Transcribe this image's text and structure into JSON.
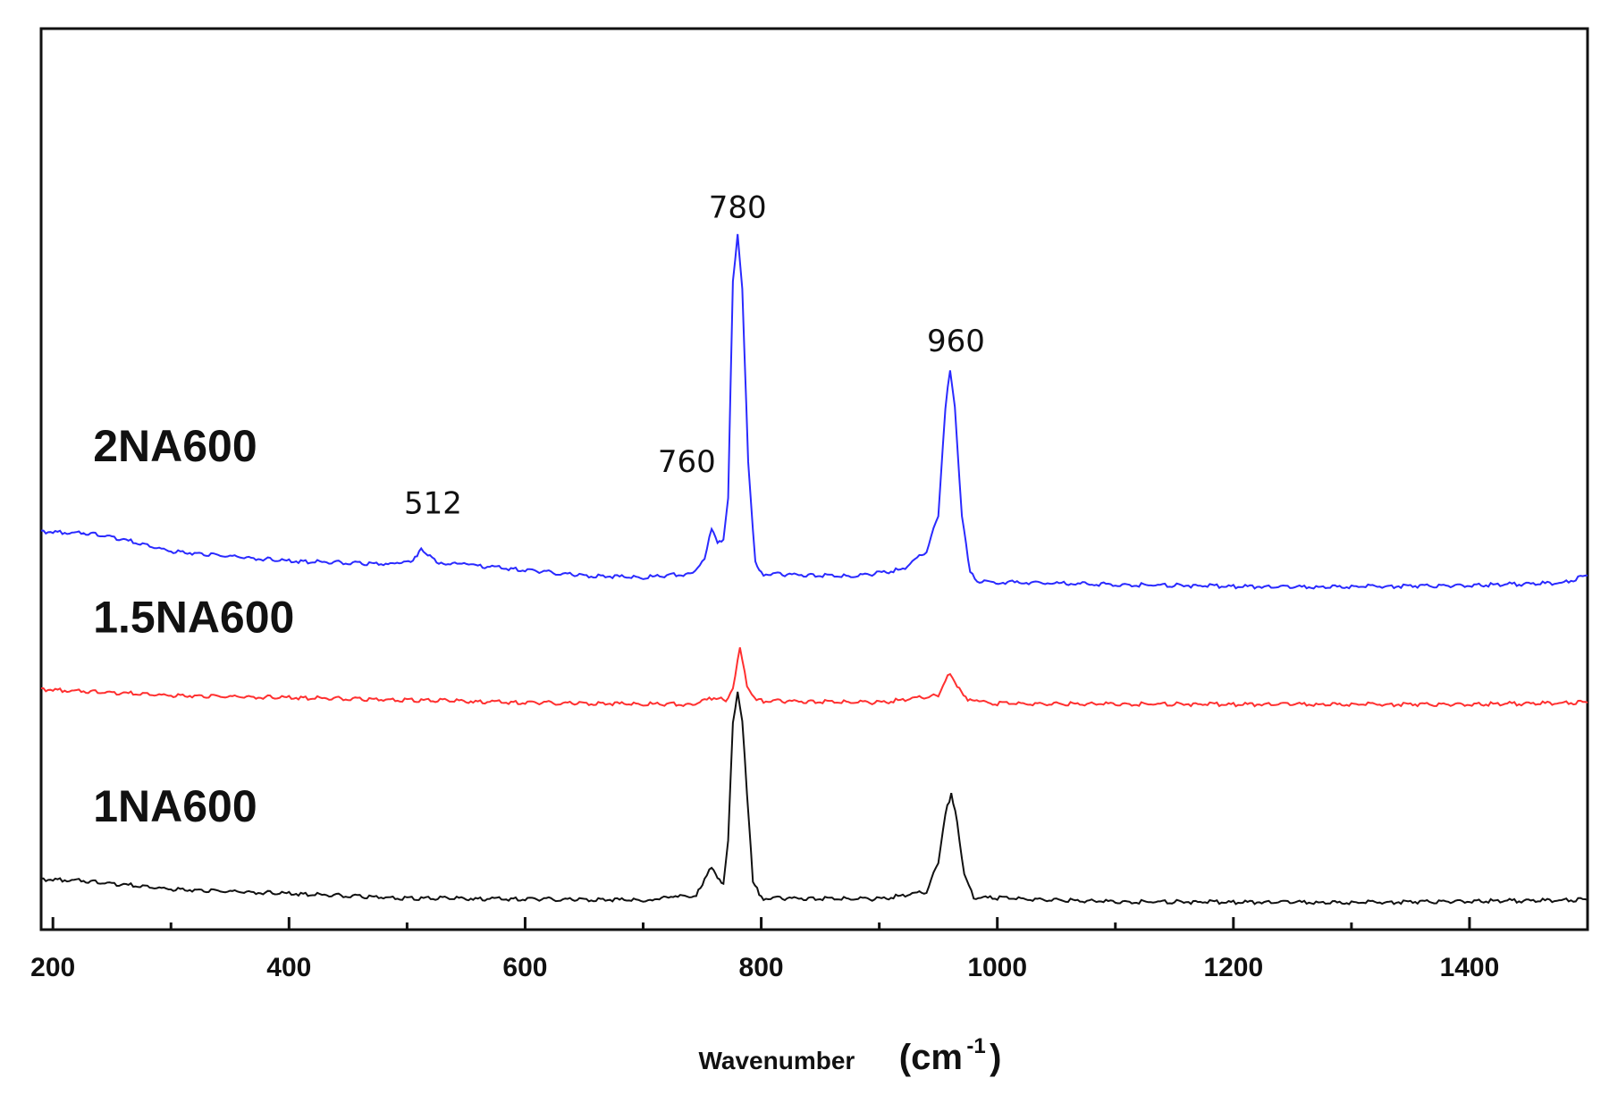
{
  "chart_data": {
    "type": "line",
    "title": "",
    "xlabel": "Wavenumber",
    "xlabel_unit_open": "(cm",
    "xlabel_unit_sup": "-1",
    "xlabel_unit_close": ")",
    "ylabel": "",
    "xlim": [
      190,
      1500
    ],
    "ylim": [
      0,
      1000
    ],
    "grid": false,
    "x_ticks": [
      200,
      400,
      600,
      800,
      1000,
      1200,
      1400
    ],
    "x_tick_labels": [
      "200",
      "400",
      "600",
      "800",
      "1000",
      "1200",
      "1400"
    ],
    "x_minor_ticks": [
      300,
      500,
      700,
      900,
      1100,
      1300
    ],
    "series": [
      {
        "name": "2NA600",
        "color": "#2a2aff",
        "points": [
          [
            190,
            442
          ],
          [
            230,
            440
          ],
          [
            250,
            436
          ],
          [
            300,
            420
          ],
          [
            400,
            409
          ],
          [
            480,
            406
          ],
          [
            505,
            410
          ],
          [
            512,
            422
          ],
          [
            525,
            408
          ],
          [
            560,
            404
          ],
          [
            650,
            393
          ],
          [
            700,
            391
          ],
          [
            740,
            395
          ],
          [
            752,
            410
          ],
          [
            758,
            446
          ],
          [
            763,
            430
          ],
          [
            768,
            432
          ],
          [
            772,
            480
          ],
          [
            776,
            720
          ],
          [
            780,
            770
          ],
          [
            784,
            710
          ],
          [
            789,
            520
          ],
          [
            795,
            408
          ],
          [
            800,
            395
          ],
          [
            880,
            392
          ],
          [
            920,
            400
          ],
          [
            940,
            420
          ],
          [
            950,
            460
          ],
          [
            956,
            580
          ],
          [
            960,
            620
          ],
          [
            964,
            580
          ],
          [
            970,
            460
          ],
          [
            977,
            395
          ],
          [
            985,
            386
          ],
          [
            1100,
            383
          ],
          [
            1250,
            380
          ],
          [
            1400,
            382
          ],
          [
            1480,
            385
          ],
          [
            1500,
            393
          ]
        ]
      },
      {
        "name": "1.5NA600",
        "color": "#ff3030",
        "points": [
          [
            190,
            267
          ],
          [
            300,
            260
          ],
          [
            500,
            255
          ],
          [
            600,
            252
          ],
          [
            740,
            250
          ],
          [
            762,
            258
          ],
          [
            770,
            253
          ],
          [
            776,
            268
          ],
          [
            782,
            312
          ],
          [
            788,
            270
          ],
          [
            796,
            254
          ],
          [
            900,
            252
          ],
          [
            950,
            260
          ],
          [
            956,
            278
          ],
          [
            960,
            283
          ],
          [
            966,
            270
          ],
          [
            975,
            254
          ],
          [
            1000,
            251
          ],
          [
            1200,
            250
          ],
          [
            1400,
            250
          ],
          [
            1500,
            252
          ]
        ]
      },
      {
        "name": "1NA600",
        "color": "#111111",
        "points": [
          [
            190,
            56
          ],
          [
            220,
            55
          ],
          [
            300,
            45
          ],
          [
            500,
            35
          ],
          [
            700,
            33
          ],
          [
            745,
            38
          ],
          [
            752,
            55
          ],
          [
            758,
            70
          ],
          [
            763,
            58
          ],
          [
            768,
            50
          ],
          [
            772,
            100
          ],
          [
            776,
            230
          ],
          [
            780,
            262
          ],
          [
            784,
            230
          ],
          [
            788,
            150
          ],
          [
            793,
            55
          ],
          [
            800,
            35
          ],
          [
            900,
            34
          ],
          [
            940,
            42
          ],
          [
            950,
            75
          ],
          [
            956,
            130
          ],
          [
            961,
            150
          ],
          [
            966,
            120
          ],
          [
            972,
            60
          ],
          [
            980,
            36
          ],
          [
            1100,
            31
          ],
          [
            1300,
            30
          ],
          [
            1500,
            33
          ]
        ]
      }
    ],
    "series_labels": [
      {
        "text": "2NA600",
        "x": 200,
        "y": 520
      },
      {
        "text": "1.5NA600",
        "x": 200,
        "y": 330
      },
      {
        "text": "1NA600",
        "x": 200,
        "y": 120
      }
    ],
    "annotations": [
      {
        "text": "512",
        "x": 522,
        "y": 462
      },
      {
        "text": "760",
        "x": 737,
        "y": 508
      },
      {
        "text": "780",
        "x": 780,
        "y": 790
      },
      {
        "text": "960",
        "x": 965,
        "y": 642
      }
    ]
  }
}
